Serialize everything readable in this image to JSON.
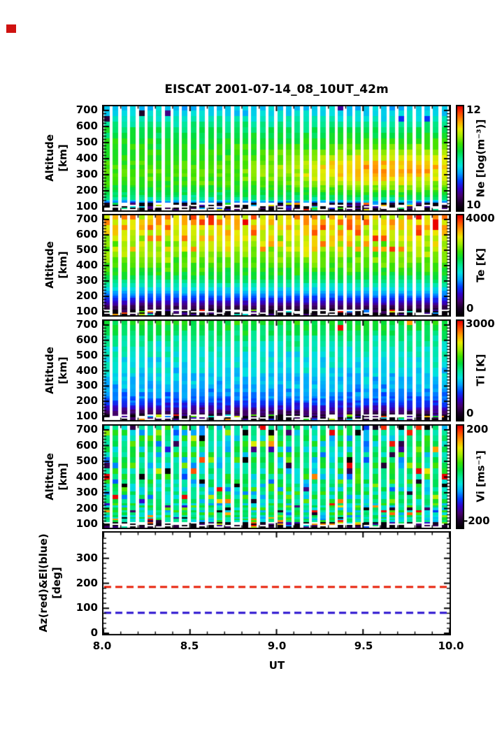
{
  "title": "EISCAT 2001-07-14_08_10UT_42m",
  "axes": {
    "x_label": "UT",
    "x_range": [
      8.0,
      10.0
    ],
    "x_tick_labels": [
      "8.0",
      "8.5",
      "9.0",
      "9.5",
      "10.0"
    ],
    "alt_tick_labels": [
      "700",
      "600",
      "500",
      "400",
      "300",
      "200",
      "100"
    ],
    "azel_tick_labels": [
      "300",
      "200",
      "100",
      "0"
    ]
  },
  "colors": {
    "background": "#ffffff",
    "frame": "#000000",
    "corner_mark": "#cf1210",
    "az_line": "#e8220a",
    "el_line": "#2a12cf",
    "colormap": [
      "#000000",
      "#1a0028",
      "#46006e",
      "#3200c8",
      "#003cff",
      "#00a0ff",
      "#00e1e1",
      "#00e896",
      "#00dc3c",
      "#3ce100",
      "#a0eb00",
      "#ebeb00",
      "#ffa000",
      "#ff5000",
      "#eb0000"
    ]
  },
  "chart_data": [
    {
      "id": "ne",
      "type": "heatmap",
      "ylabel_lines": [
        "Altitude",
        "[km]"
      ],
      "cb_label": "Ne [log(m⁻³)]",
      "cb_top": "12",
      "cb_bottom": "10",
      "vmin": 10,
      "vmax": 12,
      "n_cols": 40,
      "x_range": [
        8.0,
        10.0
      ],
      "alt_range": [
        70,
        735
      ],
      "profile": {
        "alts": [
          70,
          100,
          120,
          150,
          200,
          250,
          300,
          350,
          400,
          500,
          600,
          650,
          700,
          735
        ],
        "values": [
          10.05,
          10.15,
          10.5,
          11.0,
          11.15,
          11.25,
          11.3,
          11.3,
          11.25,
          11.2,
          11.05,
          10.9,
          10.8,
          10.75
        ]
      },
      "noise": 0.08,
      "bottom_alt": 122,
      "hotspot": {
        "x": 9.65,
        "alt": 330,
        "amp": 0.42,
        "sx": 0.55,
        "salt": 130
      },
      "speckle": {
        "prob": 0.06,
        "amp": -0.55,
        "alt_min": 640
      }
    },
    {
      "id": "te",
      "type": "heatmap",
      "ylabel_lines": [
        "Altitude",
        "[km]"
      ],
      "cb_label": "Te [K]",
      "cb_top": "4000",
      "cb_bottom": "0",
      "vmin": 0,
      "vmax": 4000,
      "n_cols": 40,
      "x_range": [
        8.0,
        10.0
      ],
      "alt_range": [
        70,
        735
      ],
      "profile": {
        "alts": [
          70,
          100,
          130,
          160,
          200,
          250,
          300,
          350,
          400,
          500,
          600,
          700,
          735
        ],
        "values": [
          150,
          260,
          450,
          800,
          1250,
          1700,
          2100,
          2400,
          2600,
          2850,
          3100,
          3300,
          3350
        ]
      },
      "noise": 260,
      "bottom_alt": 118,
      "speckle": {
        "prob": 0.15,
        "amp": 500,
        "alt_min": 480
      }
    },
    {
      "id": "ti",
      "type": "heatmap",
      "ylabel_lines": [
        "Altitude",
        "[km]"
      ],
      "cb_label": "Ti [K]",
      "cb_top": "3000",
      "cb_bottom": "0",
      "vmin": 0,
      "vmax": 3000,
      "n_cols": 40,
      "x_range": [
        8.0,
        10.0
      ],
      "alt_range": [
        70,
        735
      ],
      "profile": {
        "alts": [
          70,
          100,
          130,
          160,
          200,
          250,
          300,
          400,
          500,
          600,
          650,
          700,
          735
        ],
        "values": [
          120,
          220,
          420,
          650,
          900,
          1020,
          1120,
          1250,
          1320,
          1480,
          1650,
          1750,
          1800
        ]
      },
      "noise": 120,
      "bottom_alt": 118,
      "speckle": {
        "prob": 0.03,
        "amp": 900,
        "alt_min": 560
      }
    },
    {
      "id": "vi",
      "type": "heatmap",
      "ylabel_lines": [
        "Altitude",
        "[km]"
      ],
      "cb_label": "Vi [ms⁻¹]",
      "cb_top": "200",
      "cb_bottom": "-200",
      "vmin": -200,
      "vmax": 200,
      "n_cols": 40,
      "x_range": [
        8.0,
        10.0
      ],
      "alt_range": [
        70,
        735
      ],
      "profile": {
        "alts": [
          70,
          735
        ],
        "values": [
          0,
          5
        ]
      },
      "noise": 55,
      "bottom_alt": 112,
      "speckle": {
        "prob": 0.09,
        "amp": 175,
        "signed": true,
        "alt_min": 0
      }
    },
    {
      "id": "azel",
      "type": "line",
      "ylabel_lines": [
        "Az(red)&El(blue)",
        "[deg]"
      ],
      "ylim": [
        0,
        400
      ],
      "yticks": [
        0,
        100,
        200,
        300
      ],
      "x_range": [
        8.0,
        10.0
      ],
      "series": [
        {
          "name": "Az",
          "value": 185,
          "color": "#e8220a",
          "style": "dashed"
        },
        {
          "name": "El",
          "value": 82,
          "color": "#2a12cf",
          "style": "dashed"
        }
      ]
    }
  ]
}
